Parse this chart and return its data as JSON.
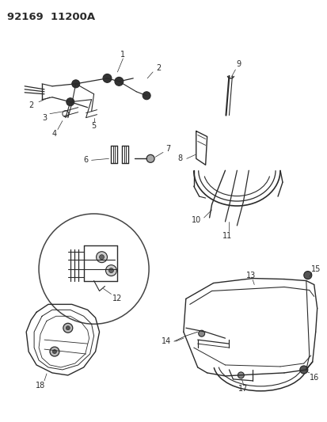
{
  "title": "92169  11200A",
  "bg_color": "#ffffff",
  "line_color": "#2a2a2a",
  "fig_width": 4.14,
  "fig_height": 5.33,
  "dpi": 100
}
